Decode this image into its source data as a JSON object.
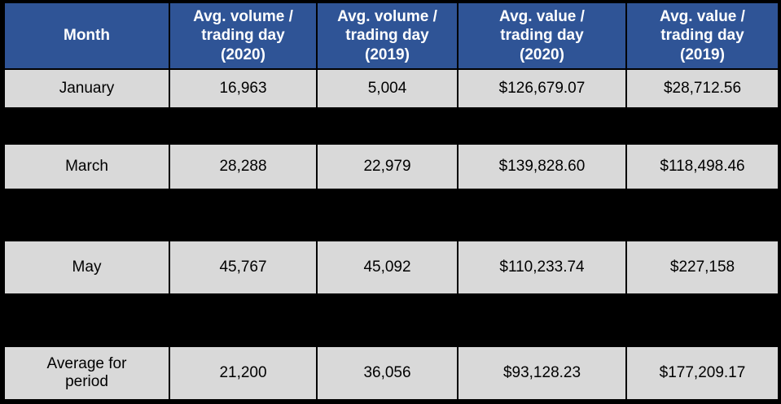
{
  "chart_data": {
    "type": "table",
    "columns": [
      "Month",
      "Avg. volume / trading day (2020)",
      "Avg. volume / trading day (2019)",
      "Avg. value / trading day (2020)",
      "Avg. value / trading day (2019)"
    ],
    "rows": [
      [
        "January",
        16963,
        5004,
        126679.07,
        28712.56
      ],
      [
        "March",
        28288,
        22979,
        139828.6,
        118498.46
      ],
      [
        "May",
        45767,
        45092,
        110233.74,
        227158
      ],
      [
        "Average for period",
        21200,
        36056,
        93128.23,
        177209.17
      ]
    ],
    "redacted_black_rows_after": [
      "January",
      "March",
      "May"
    ],
    "layout_hints": {
      "header_bg": "#2F5496",
      "header_text_color": "#FFFFFF",
      "cell_bg": "#D9D9D9",
      "cell_text_color": "#000000",
      "grid_border_color": "#000000"
    }
  },
  "table": {
    "headers": [
      "Month",
      "Avg. volume /\ntrading day\n(2020)",
      "Avg. volume /\ntrading day\n(2019)",
      "Avg. value /\ntrading day\n(2020)",
      "Avg. value /\ntrading day\n(2019)"
    ],
    "rows": [
      {
        "cells": [
          "January",
          "16,963",
          "5,004",
          "$126,679.07",
          "$28,712.56"
        ]
      },
      {
        "cells": [
          "March",
          "28,288",
          "22,979",
          "$139,828.60",
          "$118,498.46"
        ]
      },
      {
        "cells": [
          "May",
          "45,767",
          "45,092",
          "$110,233.74",
          "$227,158"
        ]
      },
      {
        "cells": [
          "Average for\nperiod",
          "21,200",
          "36,056",
          "$93,128.23",
          "$177,209.17"
        ]
      }
    ]
  }
}
